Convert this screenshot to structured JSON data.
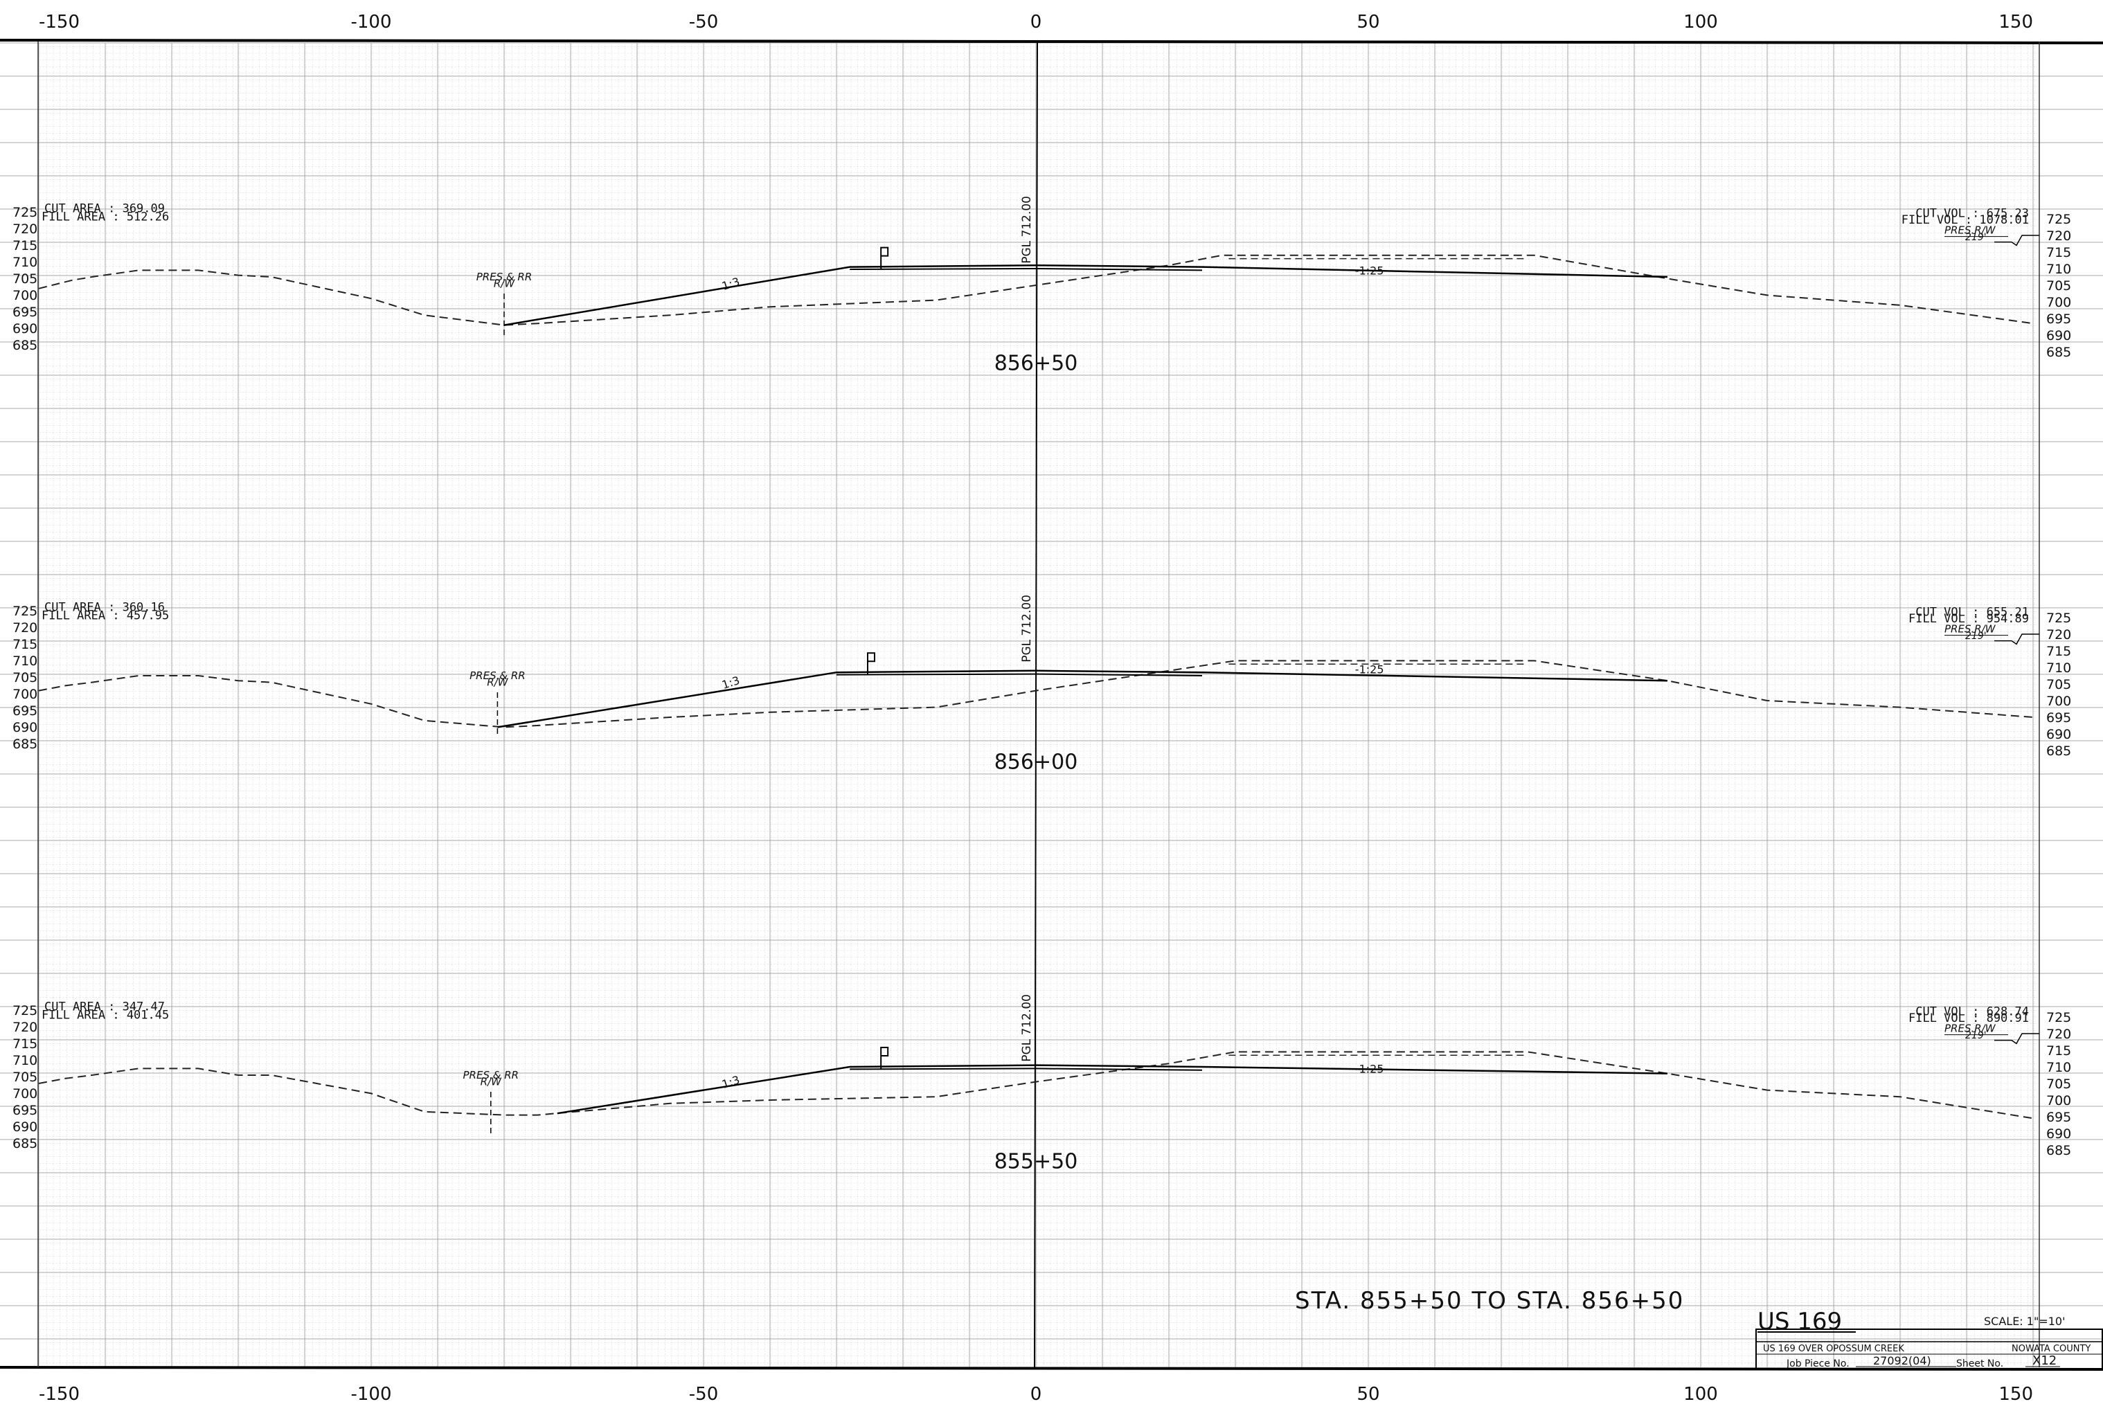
{
  "axis": {
    "top_ticks": [
      "-150",
      "-100",
      "-50",
      "0",
      "50",
      "100",
      "150"
    ],
    "bottom_ticks": [
      "-150",
      "-100",
      "-50",
      "0",
      "50",
      "100",
      "150"
    ],
    "elev_labels": [
      "725",
      "720",
      "715",
      "710",
      "705",
      "700",
      "695",
      "690",
      "685"
    ],
    "x_range": [
      -150,
      150
    ]
  },
  "sections": [
    {
      "station": "856+50",
      "cut_area": "CUT AREA : 369.09",
      "fill_area": "FILL AREA : 512.26",
      "cut_vol": "CUT VOL : 675.23",
      "fill_vol": "FILL VOL : 1078.01",
      "pgl": "PGL 712.00",
      "rw_label_1": "PRES.& RR",
      "rw_label_2": "R/W",
      "pres_rw": "PRES.R/W",
      "pres_rw_dist": "219'",
      "slope_left": "1:3",
      "slope_right": "-1:25",
      "existing_ground": [
        [
          -150,
          704
        ],
        [
          -145,
          706.5
        ],
        [
          -142,
          707.5
        ],
        [
          -135,
          709.5
        ],
        [
          -126,
          709.5
        ],
        [
          -120,
          708
        ],
        [
          -115,
          707.5
        ],
        [
          -100,
          701
        ],
        [
          -92,
          696
        ],
        [
          -80,
          693
        ],
        [
          -75,
          693.5
        ],
        [
          -55,
          696
        ],
        [
          -40,
          698.5
        ],
        [
          -15,
          700.5
        ],
        [
          0,
          705
        ],
        [
          20,
          711
        ],
        [
          28,
          714
        ],
        [
          75,
          714
        ],
        [
          95,
          707
        ],
        [
          110,
          702
        ],
        [
          120,
          700.5
        ],
        [
          130,
          699
        ],
        [
          150,
          693.5
        ]
      ],
      "proposed": [
        [
          -80,
          693
        ],
        [
          -28,
          710.5
        ],
        [
          0,
          711
        ],
        [
          25,
          710.5
        ],
        [
          95,
          707.5
        ]
      ],
      "subgrade": [
        [
          -28,
          709.8
        ],
        [
          0,
          710
        ],
        [
          25,
          709.5
        ]
      ],
      "rw_x": -80
    },
    {
      "station": "856+00",
      "cut_area": "CUT AREA : 360.16",
      "fill_area": "FILL AREA : 457.95",
      "cut_vol": "CUT VOL : 655.21",
      "fill_vol": "FILL VOL : 954.89",
      "pgl": "PGL 712.00",
      "rw_label_1": "PRES.& RR",
      "rw_label_2": "R/W",
      "pres_rw": "PRES.R/W",
      "pres_rw_dist": "219'",
      "slope_left": "1:3",
      "slope_right": "-1:25",
      "existing_ground": [
        [
          -150,
          703
        ],
        [
          -146,
          704.5
        ],
        [
          -142,
          705.5
        ],
        [
          -135,
          707.5
        ],
        [
          -126,
          707.5
        ],
        [
          -120,
          706
        ],
        [
          -115,
          705.5
        ],
        [
          -100,
          699
        ],
        [
          -92,
          694
        ],
        [
          -80,
          692
        ],
        [
          -75,
          692.5
        ],
        [
          -55,
          695
        ],
        [
          -40,
          696.5
        ],
        [
          -15,
          698
        ],
        [
          0,
          703
        ],
        [
          20,
          709
        ],
        [
          30,
          712
        ],
        [
          75,
          712
        ],
        [
          95,
          706
        ],
        [
          110,
          700
        ],
        [
          120,
          699
        ],
        [
          130,
          698
        ],
        [
          150,
          695
        ]
      ],
      "proposed": [
        [
          -81,
          692
        ],
        [
          -30,
          708.5
        ],
        [
          0,
          709
        ],
        [
          25,
          708.5
        ],
        [
          95,
          706
        ]
      ],
      "subgrade": [
        [
          -30,
          707.8
        ],
        [
          0,
          708
        ],
        [
          25,
          707.5
        ]
      ],
      "rw_x": -81
    },
    {
      "station": "855+50",
      "cut_area": "CUT AREA : 347.47",
      "fill_area": "FILL AREA : 401.45",
      "cut_vol": "CUT VOL : 628.74",
      "fill_vol": "FILL VOL : 890.91",
      "pgl": "PGL 712.00",
      "rw_label_1": "PRES.& RR",
      "rw_label_2": "R/W",
      "pres_rw": "PRES.R/W",
      "pres_rw_dist": "219'",
      "slope_left": "1:3",
      "slope_right": "-1:25",
      "existing_ground": [
        [
          -150,
          705
        ],
        [
          -146,
          706.5
        ],
        [
          -142,
          707.5
        ],
        [
          -135,
          709.5
        ],
        [
          -126,
          709.5
        ],
        [
          -120,
          707.5
        ],
        [
          -115,
          707.5
        ],
        [
          -100,
          702
        ],
        [
          -92,
          696.5
        ],
        [
          -80,
          695.5
        ],
        [
          -75,
          695.5
        ],
        [
          -55,
          699
        ],
        [
          -40,
          700
        ],
        [
          -15,
          701
        ],
        [
          0,
          705.5
        ],
        [
          20,
          711
        ],
        [
          30,
          714.5
        ],
        [
          74,
          714.5
        ],
        [
          95,
          708
        ],
        [
          110,
          703
        ],
        [
          120,
          702
        ],
        [
          130,
          701
        ],
        [
          150,
          694.5
        ]
      ],
      "proposed": [
        [
          -72,
          696
        ],
        [
          -28,
          710
        ],
        [
          0,
          710.5
        ],
        [
          25,
          710
        ],
        [
          95,
          708
        ]
      ],
      "subgrade": [
        [
          -28,
          709.3
        ],
        [
          0,
          709.5
        ],
        [
          25,
          709
        ]
      ],
      "rw_x": -82
    }
  ],
  "sheet_title": "STA. 855+50 TO STA. 856+50",
  "title_block": {
    "route": "US 169",
    "scale": "SCALE: 1\"=10'",
    "project": "US 169 OVER OPOSSUM CREEK",
    "county": "NOWATA COUNTY",
    "job_piece_label": "Job Piece No.",
    "job_piece": "27092(04)",
    "sheet_label": "Sheet No.",
    "sheet_no": "X12"
  }
}
